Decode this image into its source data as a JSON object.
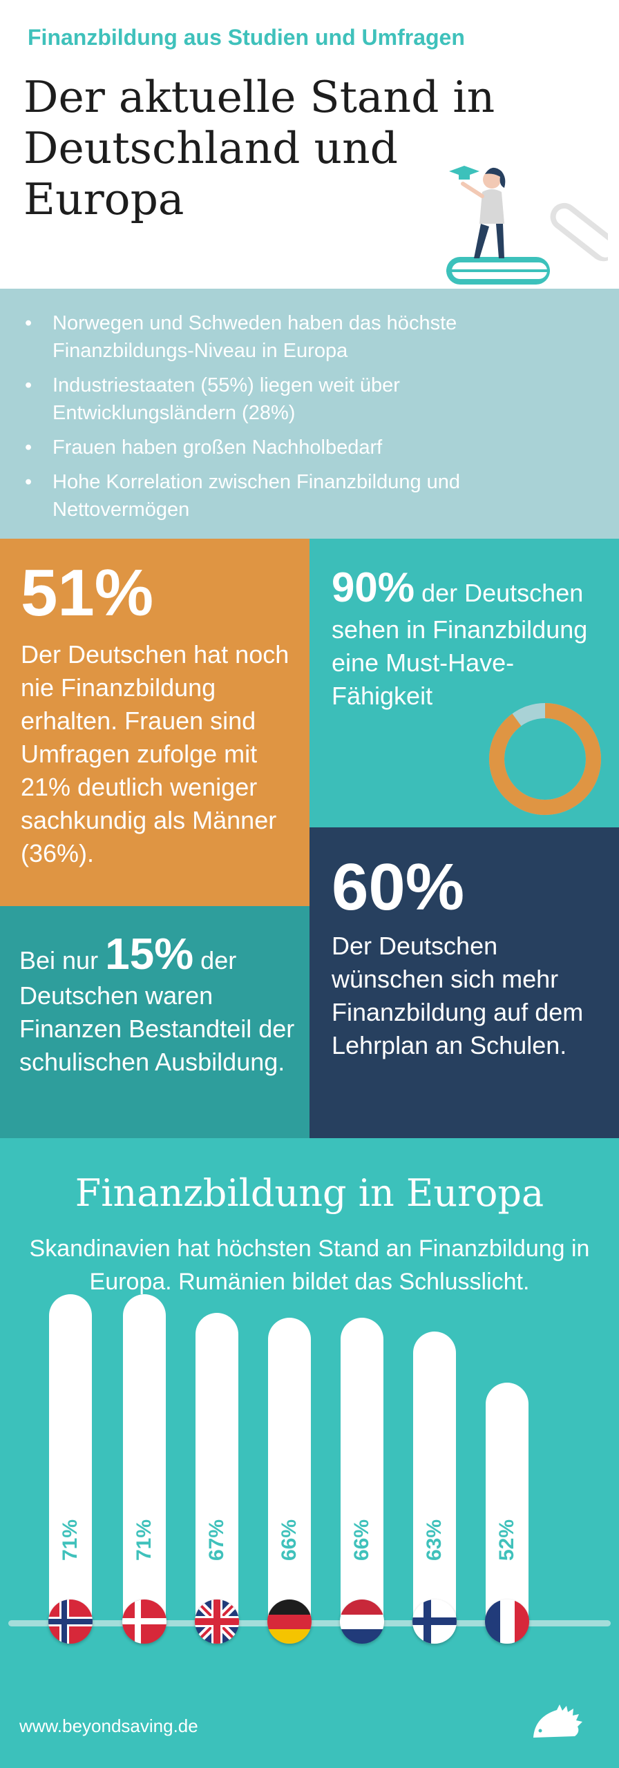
{
  "header": {
    "kicker": "Finanzbildung aus Studien und Umfragen",
    "title_line1": "Der aktuelle Stand in",
    "title_line2": "Deutschland und",
    "title_line3": "Europa"
  },
  "bullets": [
    "Norwegen und Schweden haben das höchste Finanzbildungs-Niveau in Europa",
    "Industriestaaten (55%) liegen weit über Entwicklungsländern (28%)",
    "Frauen haben großen Nachholbedarf",
    "Hohe Korrelation zwischen Finanzbildung und Nettovermögen"
  ],
  "stats": {
    "s51": {
      "number": "51%",
      "text": "Der Deutschen hat noch nie Finanzbildung erhalten. Frauen sind Umfragen zufolge mit 21% deutlich weniger sachkundig als Männer (36%)."
    },
    "s90": {
      "number": "90%",
      "text_inline": " der Deutschen",
      "text": "sehen in Finanzbildung eine Must-Have-Fähigkeit",
      "donut_fraction": 0.9
    },
    "s60": {
      "number": "60%",
      "text": "Der Deutschen wünschen sich mehr Finanzbildung auf dem Lehrplan an Schulen."
    },
    "s15": {
      "prefix": "Bei nur ",
      "number": "15%",
      "suffix": " der",
      "text": "Deutschen waren Finanzen Bestandteil der schulischen Ausbildung."
    }
  },
  "europe": {
    "title": "Finanzbildung in Europa",
    "subtitle": "Skandinavien hat höchsten Stand an Finanzbildung in Europa. Rumänien bildet das Schlusslicht."
  },
  "chart_data": {
    "type": "bar",
    "categories": [
      "norway-flag",
      "denmark-flag",
      "uk-flag",
      "germany-flag",
      "netherlands-flag",
      "finland-flag",
      "france-flag"
    ],
    "values": [
      71,
      71,
      67,
      66,
      66,
      63,
      52
    ],
    "labels": [
      "71%",
      "71%",
      "67%",
      "66%",
      "66%",
      "63%",
      "52%"
    ]
  },
  "footer": {
    "url": "www.beyondsaving.de"
  },
  "colors": {
    "teal": "#3cc1bb",
    "orange": "#df9543",
    "navy": "#27405f",
    "dark_teal": "#2e9e9c",
    "light_blue": "#a9d2d6"
  }
}
